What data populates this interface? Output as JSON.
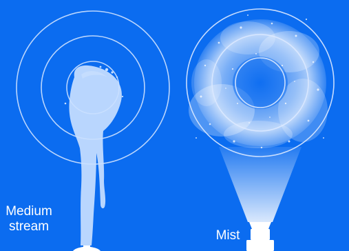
{
  "colors": {
    "background": "#0b6cf0",
    "ring": "#dbe9ff",
    "water": "#c9e0ff",
    "nozzle": "#ffffff"
  },
  "patterns": [
    {
      "id": "medium-stream",
      "label_lines": [
        "Medium",
        "stream"
      ],
      "icon": "medium-stream-spray"
    },
    {
      "id": "mist",
      "label_lines": [
        "Mist"
      ],
      "icon": "mist-spray"
    }
  ]
}
